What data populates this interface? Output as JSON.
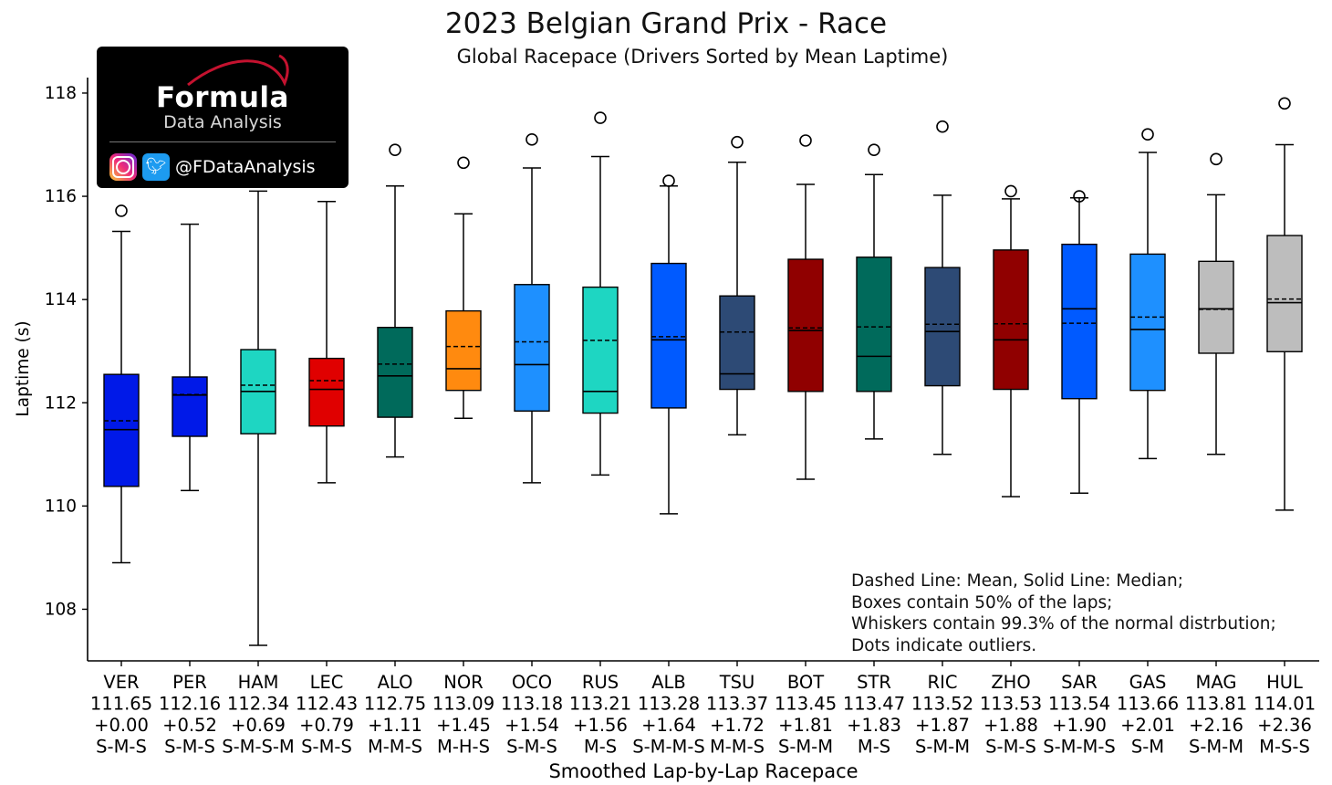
{
  "chart_data": {
    "type": "box",
    "title": "2023 Belgian Grand Prix - Race",
    "subtitle": "Global Racepace (Drivers Sorted by Mean Laptime)",
    "xlabel": "Smoothed Lap-by-Lap Racepace",
    "ylabel": "Laptime (s)",
    "ylim": [
      107,
      118.3
    ],
    "yticks": [
      "108",
      "110",
      "112",
      "114",
      "116",
      "118"
    ],
    "grid": false,
    "legend_position": "bottom-right",
    "drivers": [
      {
        "code": "VER",
        "mean_label": "111.65",
        "gap": "+0.00",
        "stints": "S-M-S",
        "color": "#0019e8",
        "mean": 111.65,
        "median": 111.48,
        "q1": 110.38,
        "q3": 112.55,
        "whisker_low": 108.9,
        "whisker_high": 115.32,
        "outliers": [
          115.72
        ]
      },
      {
        "code": "PER",
        "mean_label": "112.16",
        "gap": "+0.52",
        "stints": "S-M-S",
        "color": "#0019e8",
        "mean": 112.16,
        "median": 112.15,
        "q1": 111.35,
        "q3": 112.5,
        "whisker_low": 110.3,
        "whisker_high": 115.46,
        "outliers": []
      },
      {
        "code": "HAM",
        "mean_label": "112.34",
        "gap": "+0.69",
        "stints": "S-M-S-M",
        "color": "#1ed6c2",
        "mean": 112.34,
        "median": 112.22,
        "q1": 111.4,
        "q3": 113.03,
        "whisker_low": 107.3,
        "whisker_high": 116.1,
        "outliers": []
      },
      {
        "code": "LEC",
        "mean_label": "112.43",
        "gap": "+0.79",
        "stints": "S-M-S",
        "color": "#e00000",
        "mean": 112.43,
        "median": 112.26,
        "q1": 111.55,
        "q3": 112.86,
        "whisker_low": 110.45,
        "whisker_high": 115.9,
        "outliers": []
      },
      {
        "code": "ALO",
        "mean_label": "112.75",
        "gap": "+1.11",
        "stints": "M-M-S",
        "color": "#006a5b",
        "mean": 112.75,
        "median": 112.52,
        "q1": 111.72,
        "q3": 113.46,
        "whisker_low": 110.95,
        "whisker_high": 116.2,
        "outliers": [
          116.9
        ]
      },
      {
        "code": "NOR",
        "mean_label": "113.09",
        "gap": "+1.45",
        "stints": "M-H-S",
        "color": "#ff8a0f",
        "mean": 113.09,
        "median": 112.66,
        "q1": 112.24,
        "q3": 113.78,
        "whisker_low": 111.7,
        "whisker_high": 115.66,
        "outliers": [
          116.65
        ]
      },
      {
        "code": "OCO",
        "mean_label": "113.18",
        "gap": "+1.54",
        "stints": "S-M-S",
        "color": "#1e90ff",
        "mean": 113.18,
        "median": 112.74,
        "q1": 111.84,
        "q3": 114.29,
        "whisker_low": 110.45,
        "whisker_high": 116.55,
        "outliers": [
          117.1
        ]
      },
      {
        "code": "RUS",
        "mean_label": "113.21",
        "gap": "+1.56",
        "stints": "M-S",
        "color": "#1ed6c2",
        "mean": 113.21,
        "median": 112.22,
        "q1": 111.8,
        "q3": 114.24,
        "whisker_low": 110.6,
        "whisker_high": 116.77,
        "outliers": [
          117.52
        ]
      },
      {
        "code": "ALB",
        "mean_label": "113.28",
        "gap": "+1.64",
        "stints": "S-M-M-S",
        "color": "#005aff",
        "mean": 113.28,
        "median": 113.22,
        "q1": 111.9,
        "q3": 114.7,
        "whisker_low": 109.85,
        "whisker_high": 116.2,
        "outliers": [
          116.3
        ]
      },
      {
        "code": "TSU",
        "mean_label": "113.37",
        "gap": "+1.72",
        "stints": "M-M-S",
        "color": "#2d4a75",
        "mean": 113.37,
        "median": 112.56,
        "q1": 112.26,
        "q3": 114.07,
        "whisker_low": 111.38,
        "whisker_high": 116.66,
        "outliers": [
          117.05
        ]
      },
      {
        "code": "BOT",
        "mean_label": "113.45",
        "gap": "+1.81",
        "stints": "S-M-M",
        "color": "#900000",
        "mean": 113.45,
        "median": 113.4,
        "q1": 112.22,
        "q3": 114.78,
        "whisker_low": 110.52,
        "whisker_high": 116.23,
        "outliers": [
          117.08
        ]
      },
      {
        "code": "STR",
        "mean_label": "113.47",
        "gap": "+1.83",
        "stints": "M-S",
        "color": "#006a5b",
        "mean": 113.47,
        "median": 112.9,
        "q1": 112.22,
        "q3": 114.82,
        "whisker_low": 111.3,
        "whisker_high": 116.42,
        "outliers": [
          116.9
        ]
      },
      {
        "code": "RIC",
        "mean_label": "113.52",
        "gap": "+1.87",
        "stints": "S-M-M",
        "color": "#2d4a75",
        "mean": 113.52,
        "median": 113.38,
        "q1": 112.33,
        "q3": 114.62,
        "whisker_low": 111.0,
        "whisker_high": 116.02,
        "outliers": [
          117.35
        ]
      },
      {
        "code": "ZHO",
        "mean_label": "113.53",
        "gap": "+1.88",
        "stints": "S-M-S",
        "color": "#900000",
        "mean": 113.53,
        "median": 113.22,
        "q1": 112.26,
        "q3": 114.96,
        "whisker_low": 110.18,
        "whisker_high": 115.95,
        "outliers": [
          116.1
        ]
      },
      {
        "code": "SAR",
        "mean_label": "113.54",
        "gap": "+1.90",
        "stints": "S-M-M-S",
        "color": "#005aff",
        "mean": 113.54,
        "median": 113.82,
        "q1": 112.08,
        "q3": 115.07,
        "whisker_low": 110.25,
        "whisker_high": 115.97,
        "outliers": [
          116.0
        ]
      },
      {
        "code": "GAS",
        "mean_label": "113.66",
        "gap": "+2.01",
        "stints": "S-M",
        "color": "#1e90ff",
        "mean": 113.66,
        "median": 113.42,
        "q1": 112.24,
        "q3": 114.88,
        "whisker_low": 110.92,
        "whisker_high": 116.85,
        "outliers": [
          117.2
        ]
      },
      {
        "code": "MAG",
        "mean_label": "113.81",
        "gap": "+2.16",
        "stints": "S-M-M",
        "color": "#bdbdbd",
        "mean": 113.81,
        "median": 113.82,
        "q1": 112.96,
        "q3": 114.74,
        "whisker_low": 111.0,
        "whisker_high": 116.03,
        "outliers": [
          116.72
        ]
      },
      {
        "code": "HUL",
        "mean_label": "114.01",
        "gap": "+2.36",
        "stints": "M-S-S",
        "color": "#bdbdbd",
        "mean": 114.01,
        "median": 113.94,
        "q1": 112.99,
        "q3": 115.24,
        "whisker_low": 109.92,
        "whisker_high": 117.0,
        "outliers": [
          117.8
        ]
      }
    ],
    "annotation": [
      "Dashed Line: Mean, Solid Line: Median;",
      "Boxes contain 50% of the laps;",
      "Whiskers contain 99.3% of the normal distrbution;",
      "Dots indicate outliers."
    ]
  },
  "logo": {
    "brand": "Formula",
    "brand_sub": "Data Analysis",
    "handle": "@FDataAnalysis",
    "icons": [
      "instagram-icon",
      "twitter-icon"
    ]
  }
}
